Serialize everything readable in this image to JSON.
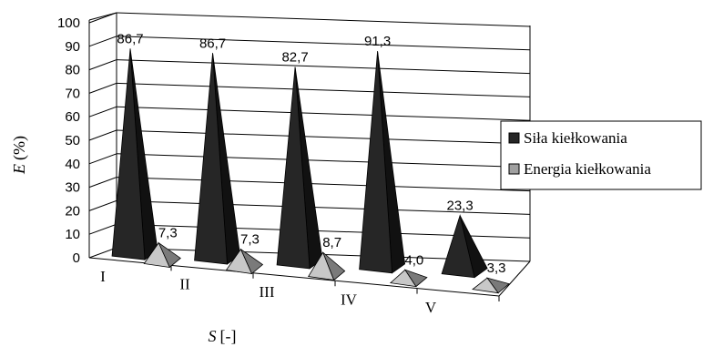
{
  "chart_data": {
    "type": "bar",
    "subtype": "3d-pyramid",
    "categories": [
      "I",
      "II",
      "III",
      "IV",
      "V"
    ],
    "series": [
      {
        "name": "Siła kiełkowania",
        "values": [
          86.7,
          86.7,
          82.7,
          91.3,
          23.3
        ],
        "labels": [
          "86,7",
          "86,7",
          "82,7",
          "91,3",
          "23,3"
        ],
        "color": "#262626"
      },
      {
        "name": "Energia kiełkowania",
        "values": [
          7.3,
          7.3,
          8.7,
          4.0,
          3.3
        ],
        "labels": [
          "7,3",
          "7,3",
          "8,7",
          "4,0",
          "3,3"
        ],
        "color": "#a0a0a0"
      }
    ],
    "ylabel_italic": "E",
    "ylabel_unit": "(%)",
    "xlabel_italic": "S",
    "xlabel_unit": "[-]",
    "ylim": [
      0,
      100
    ],
    "yticks": [
      "0",
      "10",
      "20",
      "30",
      "40",
      "50",
      "60",
      "70",
      "80",
      "90",
      "100"
    ],
    "grid": true,
    "legend_position": "right"
  }
}
